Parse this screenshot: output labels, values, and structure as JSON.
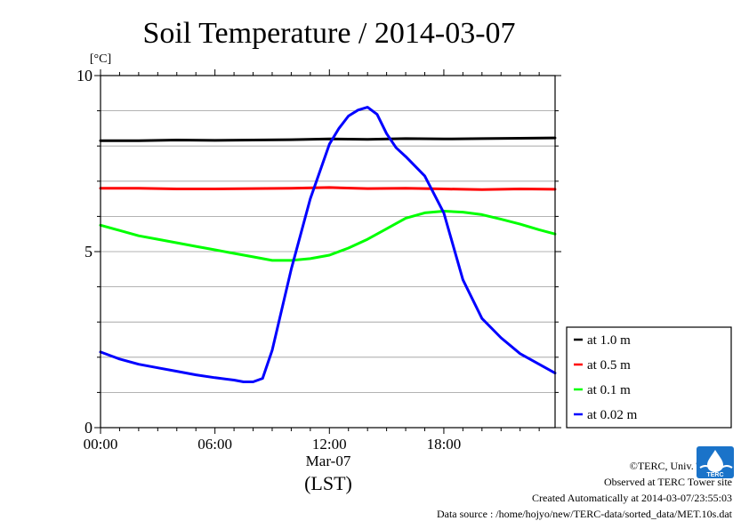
{
  "chart_data": {
    "type": "line",
    "title": "Soil Temperature / 2014-03-07",
    "ylabel": "[°C]",
    "xlabel": "(LST)",
    "date_label": "Mar-07",
    "ylim": [
      0,
      10
    ],
    "xlim": [
      0,
      23.833
    ],
    "x_unit": "hour of day (LST)",
    "yticks": [
      0,
      5,
      10
    ],
    "xticks": [
      {
        "hour": 0,
        "label": "00:00"
      },
      {
        "hour": 6,
        "label": "06:00"
      },
      {
        "hour": 12,
        "label": "12:00"
      },
      {
        "hour": 18,
        "label": "18:00"
      }
    ],
    "grid": true,
    "legend_position": "right-bottom outside",
    "series": [
      {
        "name": "at 1.0 m",
        "color": "#000000",
        "x": [
          0,
          2,
          4,
          6,
          8,
          10,
          12,
          14,
          16,
          18,
          20,
          22,
          23.83
        ],
        "y": [
          8.15,
          8.15,
          8.17,
          8.16,
          8.17,
          8.18,
          8.2,
          8.19,
          8.21,
          8.2,
          8.21,
          8.22,
          8.23
        ]
      },
      {
        "name": "at 0.5 m",
        "color": "#ff0000",
        "x": [
          0,
          2,
          4,
          6,
          8,
          10,
          12,
          14,
          16,
          18,
          20,
          22,
          23.83
        ],
        "y": [
          6.8,
          6.8,
          6.78,
          6.78,
          6.79,
          6.8,
          6.82,
          6.79,
          6.8,
          6.78,
          6.76,
          6.78,
          6.77
        ]
      },
      {
        "name": "at 0.1 m",
        "color": "#00ff00",
        "x": [
          0,
          1,
          2,
          3,
          4,
          5,
          6,
          7,
          8,
          9,
          10,
          11,
          12,
          13,
          14,
          15,
          16,
          17,
          18,
          19,
          20,
          21,
          22,
          23,
          23.83
        ],
        "y": [
          5.75,
          5.6,
          5.45,
          5.35,
          5.25,
          5.15,
          5.05,
          4.95,
          4.85,
          4.75,
          4.75,
          4.8,
          4.9,
          5.1,
          5.35,
          5.65,
          5.95,
          6.1,
          6.15,
          6.12,
          6.05,
          5.92,
          5.78,
          5.62,
          5.5
        ]
      },
      {
        "name": "at 0.02 m",
        "color": "#0000ff",
        "x": [
          0,
          1,
          2,
          3,
          4,
          5,
          6,
          7,
          7.5,
          8,
          8.5,
          9,
          10,
          11,
          12,
          12.5,
          13,
          13.5,
          14,
          14.5,
          15,
          15.5,
          16,
          17,
          18,
          19,
          20,
          21,
          22,
          23,
          23.83
        ],
        "y": [
          2.15,
          1.95,
          1.8,
          1.7,
          1.6,
          1.5,
          1.42,
          1.35,
          1.3,
          1.3,
          1.4,
          2.2,
          4.5,
          6.5,
          8.05,
          8.5,
          8.85,
          9.02,
          9.1,
          8.9,
          8.35,
          7.95,
          7.7,
          7.15,
          6.1,
          4.2,
          3.1,
          2.55,
          2.1,
          1.8,
          1.55
        ]
      }
    ]
  },
  "credits": {
    "copyright": "©TERC, Univ. Tsukuba",
    "site": "Observed at TERC Tower site",
    "created": "Created Automatically at 2014-03-07/23:55:03",
    "source": "Data source : /home/hojyo/new/TERC-data/sorted_data/MET.10s.dat"
  },
  "logo_text": "TERC"
}
